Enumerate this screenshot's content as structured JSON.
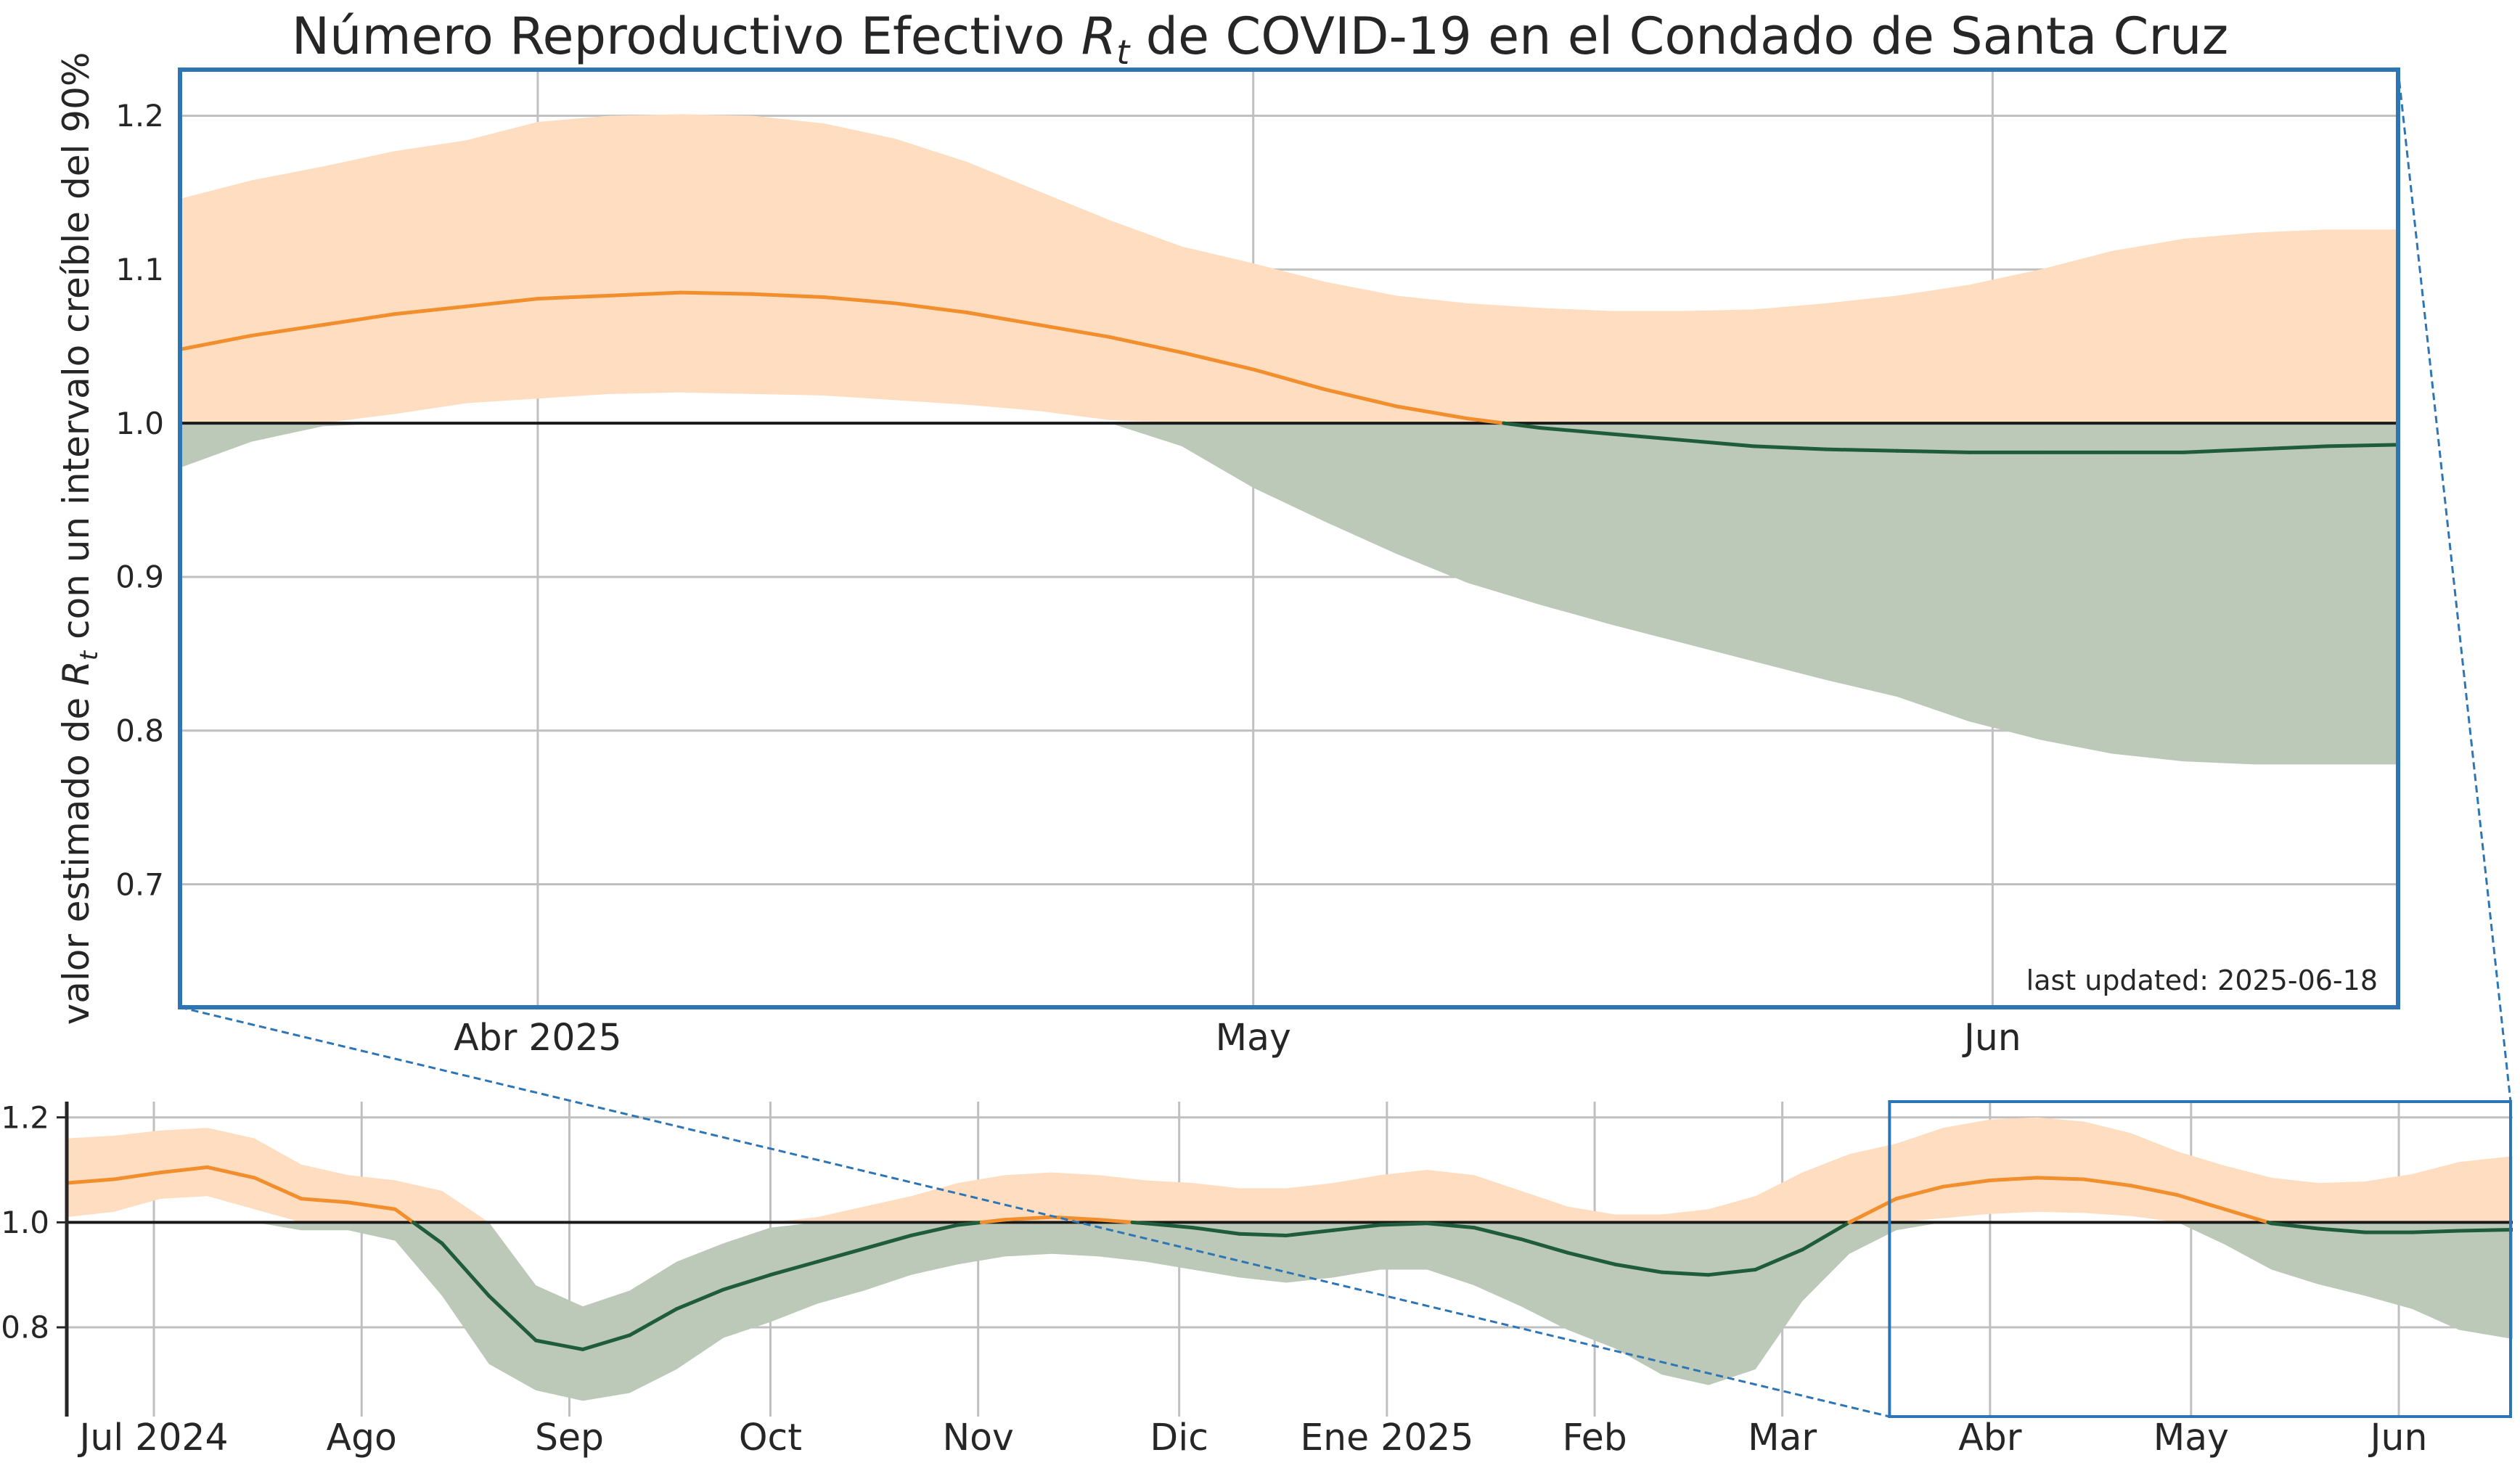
{
  "colors": {
    "above_line": "#f28e2b",
    "above_band": "#ffddc0",
    "below_line": "#1f5c3a",
    "below_band": "#bdc9b8",
    "zoom_box": "#2e75b6",
    "grid": "#c0c0c0",
    "reference": "#1a1a1a",
    "footnote": "#8c8c8c"
  },
  "chart_data": [
    {
      "id": "zoom",
      "type": "area",
      "title": "Número Reproductivo Efectivo R_t de COVID-19 en el Condado de Santa Cruz",
      "title_parts": [
        "Número Reproductivo Efectivo ",
        "R",
        "t",
        " de COVID-19 en el Condado de Santa Cruz"
      ],
      "ylabel": "valor estimado de R_t con un intervalo creíble del 90%",
      "ylabel_parts": [
        "valor estimado de ",
        "R",
        "t",
        " con un intervalo creíble del 90%"
      ],
      "footnote": "last updated: 2025-06-18",
      "xlim": [
        "2025-03-17",
        "2025-06-18"
      ],
      "ylim": [
        0.62,
        1.23
      ],
      "yticks": [
        0.7,
        0.8,
        0.9,
        1.0,
        1.1,
        1.2
      ],
      "ytick_labels": [
        "0.7",
        "0.8",
        "0.9",
        "1.0",
        "1.1",
        "1.2"
      ],
      "xticks": [
        "2025-04-01",
        "2025-05-01",
        "2025-06-01"
      ],
      "xtick_labels": [
        "Abr 2025",
        "May",
        "Jun"
      ],
      "reference_line": 1.0,
      "grid": true,
      "series": [
        {
          "x": [
            "2025-03-17",
            "2025-03-20",
            "2025-03-23",
            "2025-03-26",
            "2025-03-29",
            "2025-04-01",
            "2025-04-04",
            "2025-04-07",
            "2025-04-10",
            "2025-04-13",
            "2025-04-16",
            "2025-04-19",
            "2025-04-22",
            "2025-04-25",
            "2025-04-28",
            "2025-05-01",
            "2025-05-04",
            "2025-05-07",
            "2025-05-10",
            "2025-05-13",
            "2025-05-16",
            "2025-05-19",
            "2025-05-22",
            "2025-05-25",
            "2025-05-28",
            "2025-05-31",
            "2025-06-03",
            "2025-06-06",
            "2025-06-09",
            "2025-06-12",
            "2025-06-15",
            "2025-06-18"
          ],
          "median": [
            1.048,
            1.057,
            1.064,
            1.071,
            1.076,
            1.081,
            1.083,
            1.085,
            1.084,
            1.082,
            1.078,
            1.072,
            1.064,
            1.056,
            1.046,
            1.035,
            1.022,
            1.011,
            1.003,
            0.997,
            0.993,
            0.989,
            0.985,
            0.983,
            0.982,
            0.981,
            0.981,
            0.981,
            0.981,
            0.983,
            0.985,
            0.986
          ],
          "lower": [
            0.971,
            0.988,
            0.998,
            1.006,
            1.013,
            1.016,
            1.019,
            1.02,
            1.019,
            1.018,
            1.015,
            1.012,
            1.008,
            1.002,
            0.985,
            0.958,
            0.936,
            0.915,
            0.896,
            0.882,
            0.869,
            0.857,
            0.845,
            0.833,
            0.822,
            0.806,
            0.794,
            0.785,
            0.78,
            0.778,
            0.778,
            0.778
          ],
          "upper": [
            1.146,
            1.158,
            1.167,
            1.177,
            1.184,
            1.196,
            1.2,
            1.201,
            1.2,
            1.195,
            1.185,
            1.17,
            1.151,
            1.132,
            1.115,
            1.104,
            1.092,
            1.083,
            1.078,
            1.075,
            1.073,
            1.073,
            1.074,
            1.078,
            1.083,
            1.09,
            1.1,
            1.112,
            1.12,
            1.124,
            1.126,
            1.126
          ]
        }
      ]
    },
    {
      "id": "overview",
      "type": "area",
      "xlim": [
        "2024-06-18",
        "2025-06-18"
      ],
      "ylim": [
        0.63,
        1.23
      ],
      "yticks": [
        0.8,
        1.0,
        1.2
      ],
      "ytick_labels": [
        "0.8",
        "1.0",
        "1.2"
      ],
      "xticks": [
        "2024-07-01",
        "2024-08-01",
        "2024-09-01",
        "2024-10-01",
        "2024-11-01",
        "2024-12-01",
        "2025-01-01",
        "2025-02-01",
        "2025-03-01",
        "2025-04-01",
        "2025-05-01",
        "2025-06-01"
      ],
      "xtick_labels": [
        "Jul 2024",
        "Ago",
        "Sep",
        "Oct",
        "Nov",
        "Dic",
        "Ene 2025",
        "Feb",
        "Mar",
        "Abr",
        "May",
        "Jun"
      ],
      "reference_line": 1.0,
      "grid": true,
      "zoom_range": [
        "2025-03-17",
        "2025-06-18"
      ],
      "series": [
        {
          "x": [
            "2024-06-18",
            "2024-06-25",
            "2024-07-02",
            "2024-07-09",
            "2024-07-16",
            "2024-07-23",
            "2024-07-30",
            "2024-08-06",
            "2024-08-13",
            "2024-08-20",
            "2024-08-27",
            "2024-09-03",
            "2024-09-10",
            "2024-09-17",
            "2024-09-24",
            "2024-10-01",
            "2024-10-08",
            "2024-10-15",
            "2024-10-22",
            "2024-10-29",
            "2024-11-05",
            "2024-11-12",
            "2024-11-19",
            "2024-11-26",
            "2024-12-03",
            "2024-12-10",
            "2024-12-17",
            "2024-12-24",
            "2024-12-31",
            "2025-01-07",
            "2025-01-14",
            "2025-01-21",
            "2025-01-28",
            "2025-02-04",
            "2025-02-11",
            "2025-02-18",
            "2025-02-25",
            "2025-03-04",
            "2025-03-11",
            "2025-03-18",
            "2025-03-25",
            "2025-04-01",
            "2025-04-08",
            "2025-04-15",
            "2025-04-22",
            "2025-04-29",
            "2025-05-06",
            "2025-05-13",
            "2025-05-20",
            "2025-05-27",
            "2025-06-03",
            "2025-06-10",
            "2025-06-18"
          ],
          "median": [
            1.075,
            1.082,
            1.095,
            1.105,
            1.085,
            1.045,
            1.038,
            1.025,
            0.96,
            0.86,
            0.775,
            0.758,
            0.785,
            0.835,
            0.872,
            0.9,
            0.925,
            0.95,
            0.975,
            0.995,
            1.005,
            1.01,
            1.005,
            0.998,
            0.99,
            0.978,
            0.975,
            0.985,
            0.995,
            0.998,
            0.99,
            0.968,
            0.942,
            0.92,
            0.905,
            0.9,
            0.91,
            0.948,
            1.0,
            1.045,
            1.068,
            1.08,
            1.085,
            1.082,
            1.07,
            1.052,
            1.025,
            0.998,
            0.988,
            0.981,
            0.981,
            0.984,
            0.986
          ],
          "lower": [
            1.01,
            1.02,
            1.045,
            1.05,
            1.025,
            0.985,
            0.985,
            0.965,
            0.86,
            0.73,
            0.68,
            0.66,
            0.675,
            0.72,
            0.78,
            0.81,
            0.845,
            0.87,
            0.9,
            0.92,
            0.935,
            0.94,
            0.935,
            0.925,
            0.91,
            0.895,
            0.885,
            0.895,
            0.91,
            0.91,
            0.88,
            0.84,
            0.795,
            0.76,
            0.71,
            0.69,
            0.72,
            0.85,
            0.94,
            0.985,
            1.008,
            1.016,
            1.02,
            1.018,
            1.012,
            1.0,
            0.958,
            0.91,
            0.882,
            0.86,
            0.835,
            0.795,
            0.778
          ],
          "upper": [
            1.16,
            1.165,
            1.175,
            1.18,
            1.16,
            1.11,
            1.09,
            1.08,
            1.06,
            1.0,
            0.88,
            0.84,
            0.87,
            0.925,
            0.96,
            0.99,
            1.01,
            1.03,
            1.05,
            1.075,
            1.09,
            1.095,
            1.09,
            1.08,
            1.075,
            1.065,
            1.065,
            1.075,
            1.09,
            1.1,
            1.09,
            1.06,
            1.03,
            1.015,
            1.015,
            1.025,
            1.05,
            1.095,
            1.13,
            1.15,
            1.18,
            1.196,
            1.2,
            1.192,
            1.17,
            1.135,
            1.108,
            1.085,
            1.075,
            1.078,
            1.092,
            1.115,
            1.126
          ]
        }
      ]
    }
  ]
}
